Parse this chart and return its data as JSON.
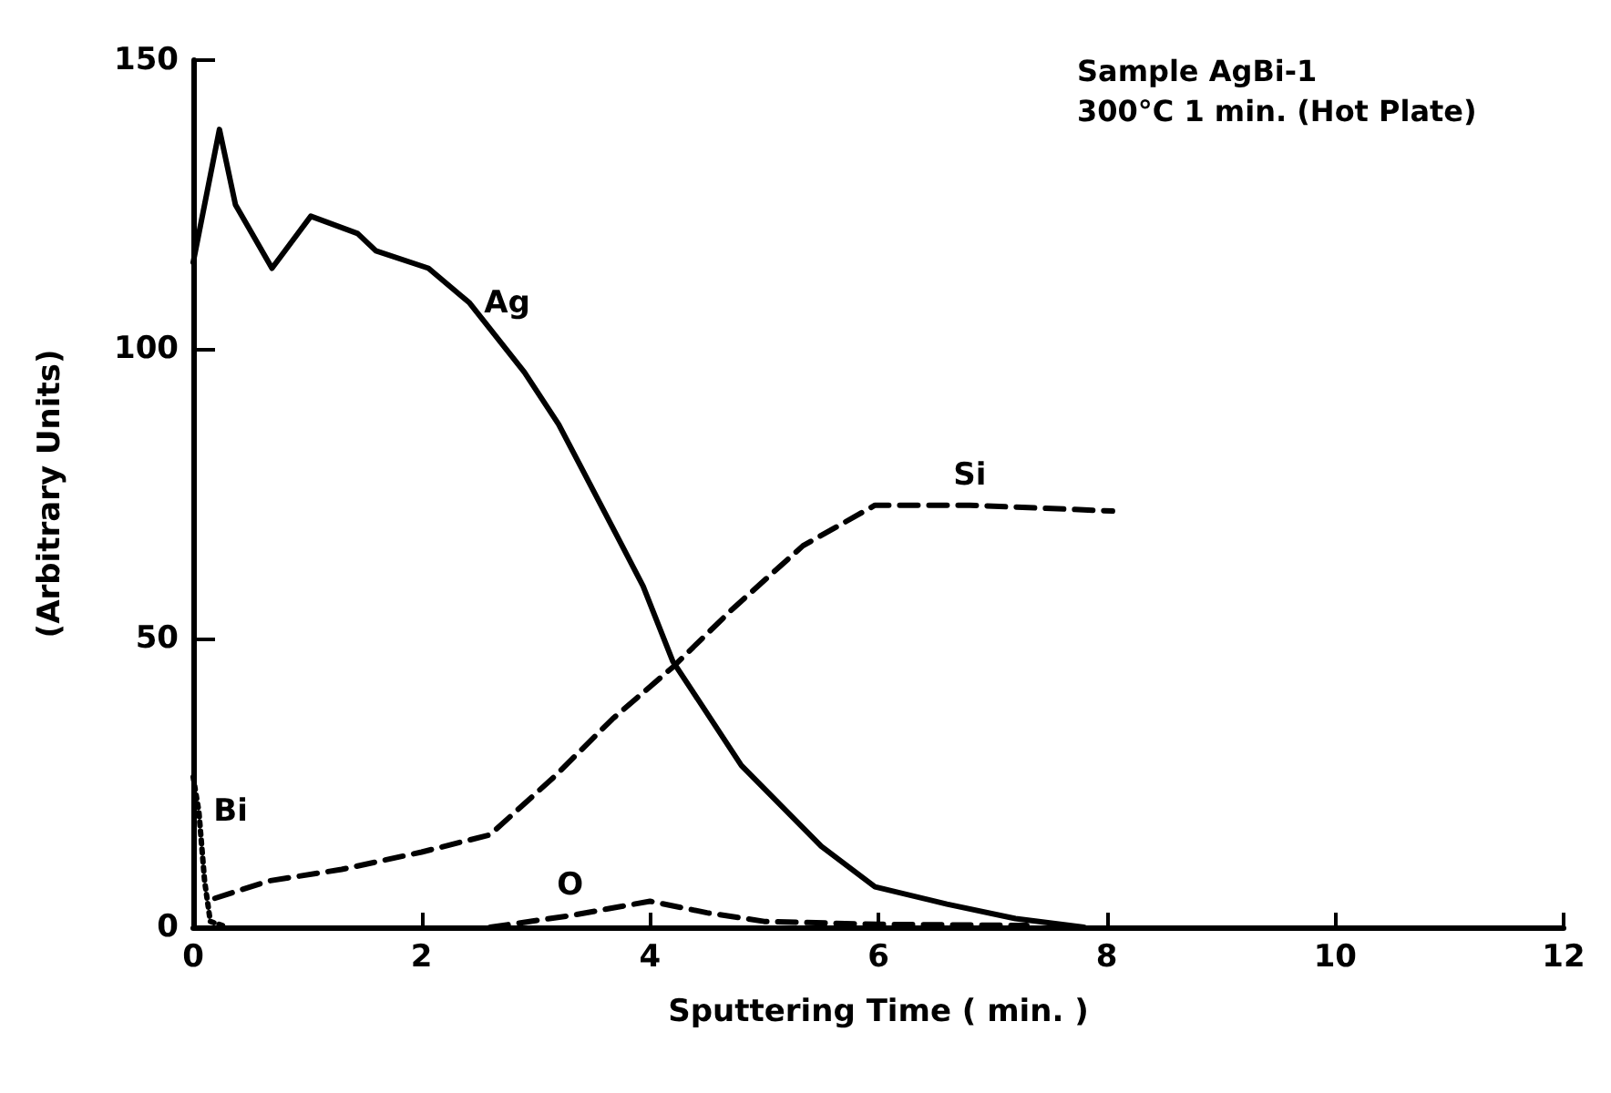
{
  "chart_data": {
    "type": "line",
    "title": "Sample AgBi-1",
    "subtitle": "300°C 1 min. (Hot Plate)",
    "xlabel": "Sputtering Time ( min. )",
    "ylabel": "(Arbitrary Units)",
    "xlim": [
      0,
      12
    ],
    "xticks": [
      0,
      2,
      4,
      6,
      8,
      10,
      12
    ],
    "ylim": [
      0,
      150
    ],
    "yticks": [
      0,
      50,
      100,
      150
    ],
    "grid": false,
    "legend": false,
    "marker": "none",
    "series": [
      {
        "name": "Ag",
        "color": "#000000",
        "line_style": "solid",
        "x": [
          0,
          0.23,
          0.37,
          0.69,
          1.03,
          1.44,
          1.6,
          2.06,
          2.42,
          2.9,
          3.2,
          3.73,
          3.94,
          4.2,
          4.8,
          5.5,
          5.97,
          6.6,
          7.2,
          7.8
        ],
        "values": [
          115,
          138,
          125,
          114,
          123,
          120,
          117,
          114,
          108,
          96,
          87,
          67,
          59,
          46,
          28,
          14,
          7,
          4,
          1.5,
          0
        ]
      },
      {
        "name": "Si",
        "color": "#000000",
        "line_style": "dashed",
        "x": [
          0.19,
          0.66,
          1.3,
          2.0,
          2.6,
          3.16,
          3.67,
          4.2,
          4.72,
          5.34,
          5.97,
          6.8,
          8.05
        ],
        "values": [
          5,
          8,
          10,
          13,
          16,
          26,
          36,
          45,
          55,
          66,
          73,
          73,
          72
        ]
      },
      {
        "name": "Bi",
        "color": "#000000",
        "line_style": "dotted",
        "x": [
          0,
          0.05,
          0.1,
          0.15,
          0.3
        ],
        "values": [
          26,
          20,
          8,
          1,
          0
        ]
      },
      {
        "name": "O",
        "color": "#000000",
        "line_style": "dashed",
        "x": [
          2.6,
          3.3,
          4.0,
          4.5,
          5.0,
          6.0,
          7.3
        ],
        "values": [
          0,
          2,
          4.5,
          2.5,
          1,
          0.5,
          0.3
        ]
      }
    ]
  }
}
